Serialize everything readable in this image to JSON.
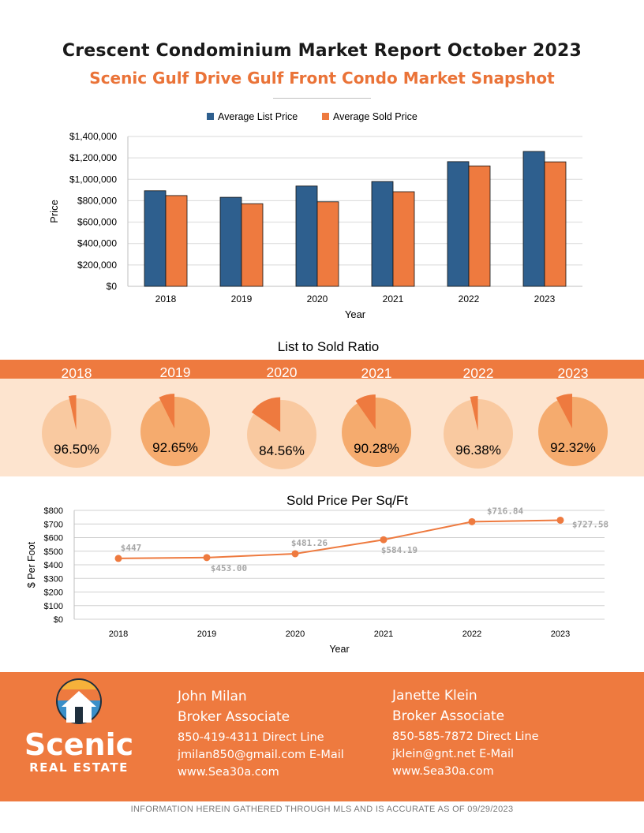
{
  "header": {
    "title": "Crescent Condominium  Market Report October 2023",
    "subtitle": "Scenic Gulf Drive Gulf Front Condo Market Snapshot"
  },
  "colors": {
    "blue": "#2e5f8e",
    "orange": "#ee7a3f",
    "peach": "#fde4cf",
    "light_pie": "#f9c9a0",
    "mid_pie": "#f5ab6e"
  },
  "chart_data": [
    {
      "type": "bar",
      "title": "",
      "categories": [
        "2018",
        "2019",
        "2020",
        "2021",
        "2022",
        "2023"
      ],
      "series": [
        {
          "name": "Average List Price",
          "values": [
            893000,
            832000,
            937000,
            979000,
            1165000,
            1260000
          ]
        },
        {
          "name": "Average Sold Price",
          "values": [
            848000,
            772000,
            790000,
            884000,
            1125000,
            1163000
          ]
        }
      ],
      "xlabel": "Year",
      "ylabel": "Price",
      "ylim": [
        0,
        1400000
      ],
      "yticks": [
        "$0",
        "$200,000",
        "$400,000",
        "$600,000",
        "$800,000",
        "$1,000,000",
        "$1,200,000",
        "$1,400,000"
      ],
      "legend": "top-center"
    },
    {
      "type": "pie",
      "title": "List to Sold Ratio",
      "categories": [
        "2018",
        "2019",
        "2020",
        "2021",
        "2022",
        "2023"
      ],
      "values": [
        96.5,
        92.65,
        84.56,
        90.28,
        96.38,
        92.32
      ],
      "labels": [
        "96.50%",
        "92.65%",
        "84.56%",
        "90.28%",
        "96.38%",
        "92.32%"
      ]
    },
    {
      "type": "line",
      "title": "Sold Price Per Sq/Ft",
      "x": [
        "2018",
        "2019",
        "2020",
        "2021",
        "2022",
        "2023"
      ],
      "values": [
        447,
        453.0,
        481.26,
        584.19,
        716.84,
        727.58
      ],
      "labels": [
        "$447",
        "$453.00",
        "$481.26",
        "$584.19",
        "$716.84",
        "$727.58"
      ],
      "xlabel": "Year",
      "ylabel": "$ Per Foot",
      "ylim": [
        0,
        800
      ],
      "yticks": [
        "$0",
        "$100",
        "$200",
        "$300",
        "$400",
        "$500",
        "$600",
        "$700",
        "$800"
      ]
    }
  ],
  "brand": {
    "name": "Scenic",
    "tagline": "REAL ESTATE"
  },
  "contacts": [
    {
      "name": "John Milan",
      "role": "Broker Associate",
      "phone": "850-419-4311 Direct Line",
      "email": "jmilan850@gmail.com E-Mail",
      "web": "www.Sea30a.com"
    },
    {
      "name": "Janette Klein",
      "role": "Broker Associate",
      "phone": "850-585-7872 Direct Line",
      "email": "jklein@gnt.net E-Mail",
      "web": "www.Sea30a.com"
    }
  ],
  "disclaimer": "INFORMATION  HEREIN GATHERED THROUGH MLS AND IS ACCURATE  AS OF 09/29/2023"
}
